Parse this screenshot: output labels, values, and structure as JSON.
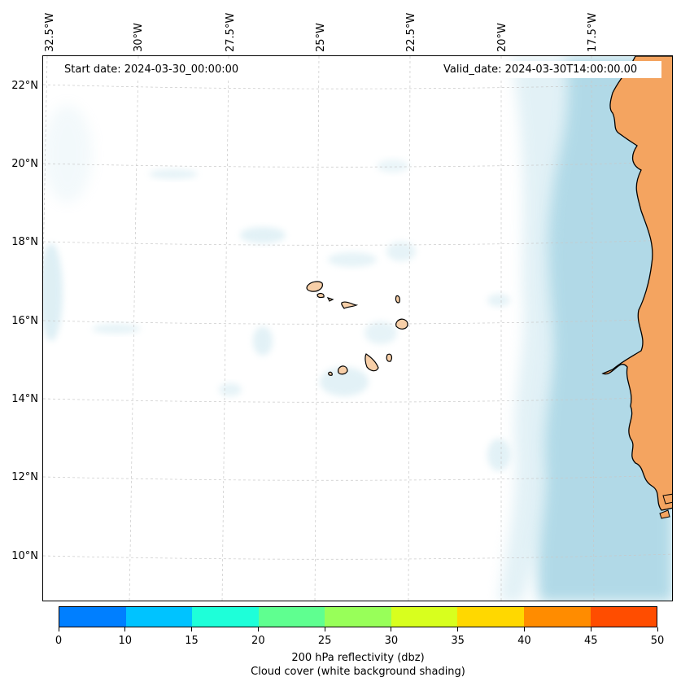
{
  "map": {
    "title_left": "Start date: 2024-03-30_00:00:00",
    "title_right": "Valid_date: 2024-03-30T14:00:00.00",
    "lon_labels": [
      "32.5°W",
      "30°W",
      "27.5°W",
      "25°W",
      "22.5°W",
      "20°W",
      "17.5°W"
    ],
    "lat_labels": [
      "22°N",
      "20°N",
      "18°N",
      "16°N",
      "14°N",
      "12°N",
      "10°N"
    ],
    "land_color": "#f4a460",
    "cloud_color": "#add8e6",
    "coast_color": "#000000"
  },
  "colorbar": {
    "ticks": [
      "0",
      "10",
      "15",
      "20",
      "25",
      "30",
      "35",
      "40",
      "45",
      "50"
    ],
    "colors": [
      "#007fff",
      "#00c3ff",
      "#1effd9",
      "#5fff90",
      "#98ff59",
      "#d8ff1e",
      "#ffd800",
      "#ff8c00",
      "#ff4d00"
    ],
    "label_line1": "200 hPa reflectivity (dbz)",
    "label_line2": "Cloud cover (white background shading)"
  }
}
